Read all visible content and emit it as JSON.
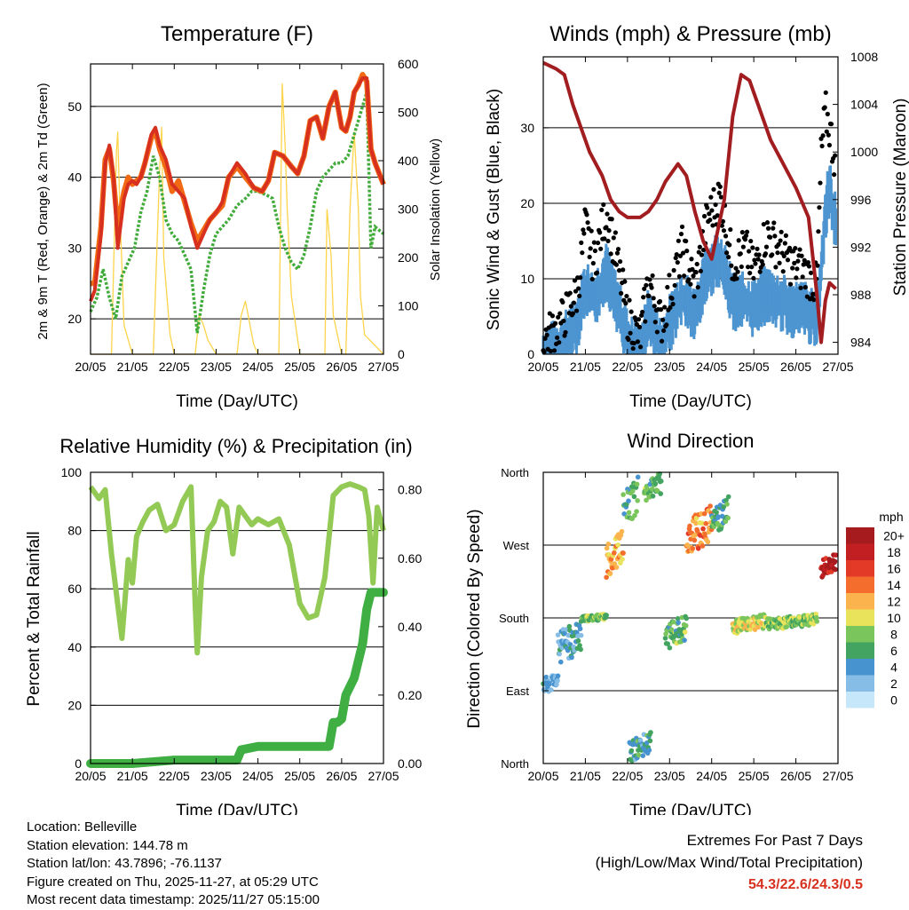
{
  "chart_data": [
    {
      "type": "line",
      "title": "Temperature (F)",
      "xlabel": "Time (Day/UTC)",
      "ylabel": "2m & 9m T (Red, Orange) & 2m Td (Green)",
      "ylabel_right": "Solar Insolation (Yellow)",
      "x_ticks": [
        "20/05",
        "21/05",
        "22/05",
        "23/05",
        "24/05",
        "25/05",
        "26/05",
        "27/05"
      ],
      "ylim": [
        15,
        56
      ],
      "y_ticks": [
        20,
        30,
        40,
        50
      ],
      "ylim_right": [
        0,
        600
      ],
      "y_ticks_right": [
        0,
        100,
        200,
        300,
        400,
        500,
        600
      ],
      "gridlines_y": [
        20,
        30,
        40,
        50
      ],
      "series": [
        {
          "name": "2m T",
          "color": "#d7301f",
          "x": [
            0,
            0.1,
            0.25,
            0.35,
            0.45,
            0.55,
            0.65,
            0.8,
            0.9,
            1.0,
            1.1,
            1.2,
            1.3,
            1.45,
            1.55,
            1.65,
            1.8,
            1.95,
            2.1,
            2.25,
            2.4,
            2.55,
            2.7,
            2.85,
            3.0,
            3.15,
            3.3,
            3.5,
            3.7,
            3.9,
            4.1,
            4.25,
            4.4,
            4.6,
            4.8,
            4.95,
            5.1,
            5.25,
            5.4,
            5.55,
            5.7,
            5.85,
            6.0,
            6.1,
            6.2,
            6.3,
            6.4,
            6.5,
            6.6,
            6.7,
            6.8,
            7.0
          ],
          "y": [
            22.5,
            24,
            32,
            42,
            44.5,
            40,
            30,
            37,
            39,
            39.5,
            39,
            40,
            42,
            46,
            47,
            44.5,
            42.5,
            39,
            38,
            37,
            33,
            30,
            32,
            34,
            35,
            36.5,
            40,
            42,
            40.5,
            38.5,
            38,
            39.5,
            43.5,
            43,
            41.5,
            40.5,
            43,
            48,
            48.5,
            45.5,
            50,
            52,
            47,
            46.5,
            48.5,
            52,
            53,
            54,
            54,
            44,
            42,
            39
          ]
        },
        {
          "name": "9m T",
          "color": "#f16913",
          "x": [
            0,
            0.1,
            0.25,
            0.35,
            0.45,
            0.55,
            0.65,
            0.8,
            0.9,
            1.0,
            1.1,
            1.2,
            1.3,
            1.45,
            1.55,
            1.65,
            1.8,
            1.95,
            2.1,
            2.25,
            2.4,
            2.55,
            2.7,
            2.85,
            3.0,
            3.15,
            3.3,
            3.5,
            3.7,
            3.9,
            4.1,
            4.25,
            4.4,
            4.6,
            4.8,
            4.95,
            5.1,
            5.25,
            5.4,
            5.55,
            5.7,
            5.85,
            6.0,
            6.1,
            6.2,
            6.3,
            6.4,
            6.5,
            6.6,
            6.7,
            6.8,
            7.0
          ],
          "y": [
            25,
            25,
            33,
            42.5,
            44,
            39.5,
            33,
            38,
            40,
            39,
            39.5,
            40,
            42,
            45.5,
            46.5,
            44,
            41.5,
            38,
            39.5,
            36.5,
            33.5,
            31,
            32.5,
            34,
            35,
            36,
            40,
            41.5,
            40,
            38.5,
            38,
            39.5,
            43.5,
            43,
            41.5,
            40.5,
            43,
            48,
            48.5,
            45.5,
            50,
            52,
            47,
            46.5,
            48.5,
            52,
            53,
            54.5,
            53.5,
            44,
            42,
            39
          ]
        },
        {
          "name": "2m Td",
          "color": "#41ab3b",
          "x": [
            0,
            0.15,
            0.3,
            0.45,
            0.6,
            0.75,
            0.9,
            1.05,
            1.2,
            1.35,
            1.5,
            1.65,
            1.8,
            1.95,
            2.1,
            2.25,
            2.4,
            2.55,
            2.7,
            2.85,
            3.0,
            3.15,
            3.3,
            3.5,
            3.7,
            3.85,
            4.0,
            4.2,
            4.35,
            4.5,
            4.65,
            4.8,
            4.95,
            5.1,
            5.25,
            5.4,
            5.55,
            5.7,
            5.85,
            6.0,
            6.15,
            6.3,
            6.45,
            6.6,
            6.7,
            6.8,
            7.0
          ],
          "y": [
            21,
            23,
            27,
            23,
            20,
            26,
            28,
            30,
            35,
            38,
            43,
            40,
            34,
            32,
            31,
            29,
            27,
            18,
            24,
            29,
            32,
            33,
            34,
            36,
            37,
            38,
            38,
            37.5,
            37,
            33,
            30,
            28,
            27,
            29,
            33,
            38,
            40,
            41,
            42,
            42,
            43,
            46,
            49,
            52,
            30,
            33,
            32
          ]
        },
        {
          "name": "Solar Insolation",
          "axis": "right",
          "color": "#fdd44a",
          "x": [
            0,
            0.5,
            0.62,
            0.65,
            0.7,
            0.8,
            1.0,
            1.5,
            1.65,
            1.7,
            1.75,
            1.9,
            2.0,
            2.5,
            2.6,
            2.7,
            2.8,
            3.0,
            3.5,
            3.6,
            3.7,
            3.9,
            4.0,
            4.5,
            4.58,
            4.65,
            4.7,
            4.8,
            5.0,
            5.6,
            5.65,
            5.75,
            5.8,
            6.0,
            6.1,
            6.2,
            6.3,
            6.4,
            6.45,
            6.55,
            7.0
          ],
          "y": [
            0,
            0,
            420,
            460,
            300,
            60,
            0,
            0,
            380,
            470,
            200,
            40,
            0,
            0,
            80,
            60,
            30,
            0,
            0,
            80,
            110,
            20,
            0,
            0,
            560,
            430,
            300,
            120,
            0,
            0,
            300,
            200,
            80,
            0,
            0,
            300,
            460,
            300,
            120,
            40,
            0
          ]
        }
      ]
    },
    {
      "type": "scatter",
      "title": "Winds (mph) & Pressure (mb)",
      "xlabel": "Time (Day/UTC)",
      "ylabel": "Sonic Wind & Gust (Blue, Black)",
      "ylabel_right": "Station Pressure (Maroon)",
      "x_ticks": [
        "20/05",
        "21/05",
        "22/05",
        "23/05",
        "24/05",
        "25/05",
        "26/05",
        "27/05"
      ],
      "ylim": [
        0,
        39.4
      ],
      "y_ticks": [
        0,
        10,
        20,
        30
      ],
      "ylim_right": [
        983,
        1008
      ],
      "y_ticks_right": [
        984,
        988,
        992,
        996,
        1000,
        1004,
        1008
      ],
      "gridlines_y": [
        10,
        20,
        30
      ],
      "series": [
        {
          "name": "Gust",
          "color": "#000000",
          "x": [
            0,
            0.4,
            0.8,
            1.0,
            1.2,
            1.5,
            1.8,
            2.0,
            2.3,
            2.5,
            2.8,
            3.0,
            3.3,
            3.6,
            3.9,
            4.2,
            4.5,
            4.8,
            5.0,
            5.3,
            5.6,
            5.9,
            6.2,
            6.5,
            6.6,
            6.7,
            6.8,
            6.95
          ],
          "y": [
            2,
            4,
            8,
            17,
            12,
            19,
            11,
            5,
            2,
            10,
            4,
            8,
            14,
            9,
            18,
            21,
            12,
            14,
            11,
            16,
            14,
            12,
            11,
            9,
            26,
            32,
            30,
            25
          ]
        },
        {
          "name": "Sonic Wind",
          "color": "#4d95d1",
          "x": [
            0,
            0.4,
            0.8,
            1.0,
            1.2,
            1.5,
            1.8,
            2.0,
            2.3,
            2.5,
            2.8,
            3.0,
            3.3,
            3.6,
            3.9,
            4.2,
            4.5,
            4.8,
            5.0,
            5.3,
            5.6,
            5.9,
            6.2,
            6.5,
            6.6,
            6.7,
            6.8,
            6.95
          ],
          "y": [
            1,
            2,
            5,
            10,
            8,
            12,
            7,
            3,
            1,
            6,
            2,
            5,
            9,
            6,
            12,
            14,
            8,
            8,
            7,
            9,
            8,
            7,
            7,
            5,
            12,
            20,
            23,
            18
          ]
        },
        {
          "name": "Station Pressure",
          "axis": "right",
          "color": "#a11d20",
          "x": [
            0,
            0.3,
            0.5,
            0.7,
            0.9,
            1.1,
            1.4,
            1.6,
            1.8,
            2.0,
            2.3,
            2.5,
            2.7,
            2.9,
            3.2,
            3.4,
            3.6,
            3.8,
            4.0,
            4.3,
            4.5,
            4.7,
            4.9,
            5.1,
            5.4,
            5.7,
            6.0,
            6.3,
            6.5,
            6.6,
            6.7,
            6.8,
            6.95
          ],
          "y": [
            1007.5,
            1007,
            1006.5,
            1004,
            1002,
            1000,
            998,
            996,
            995,
            994.5,
            994.5,
            995,
            996,
            997.5,
            999,
            998,
            995,
            992.5,
            991,
            996,
            1003,
            1006.5,
            1006,
            1004,
            1001,
            999,
            997,
            994.5,
            988,
            984,
            987.5,
            989,
            988.5
          ]
        }
      ]
    },
    {
      "type": "line",
      "title": "Relative Humidity (%) & Precipitation (in)",
      "xlabel": "Time (Day/UTC)",
      "ylabel": "Percent & Total Rainfall",
      "x_ticks": [
        "20/05",
        "21/05",
        "22/05",
        "23/05",
        "24/05",
        "25/05",
        "26/05",
        "27/05"
      ],
      "ylim": [
        0,
        100
      ],
      "y_ticks": [
        0,
        20,
        40,
        60,
        80,
        100
      ],
      "ylim_right": [
        0,
        0.8511
      ],
      "y_ticks_right": [
        "0.00",
        "0.20",
        "0.40",
        "0.60",
        "0.80"
      ],
      "gridlines_y": [
        20,
        40,
        60,
        80
      ],
      "series": [
        {
          "name": "Relative Humidity",
          "color": "#93c955",
          "x": [
            0,
            0.2,
            0.35,
            0.5,
            0.75,
            0.9,
            1.0,
            1.1,
            1.25,
            1.4,
            1.6,
            1.8,
            2.0,
            2.2,
            2.4,
            2.5,
            2.55,
            2.65,
            2.8,
            2.95,
            3.1,
            3.25,
            3.4,
            3.55,
            3.7,
            3.85,
            4.0,
            4.25,
            4.5,
            4.75,
            5.0,
            5.2,
            5.4,
            5.6,
            5.8,
            6.0,
            6.2,
            6.4,
            6.55,
            6.65,
            6.75,
            6.85,
            7.0
          ],
          "y": [
            95,
            91,
            94,
            72,
            43,
            70,
            62,
            78,
            83,
            87,
            89,
            80,
            82,
            90,
            95,
            55,
            38,
            64,
            80,
            83,
            90,
            88,
            72,
            88,
            85,
            82,
            84,
            82,
            84,
            75,
            55,
            50,
            51,
            64,
            92,
            95,
            96,
            95,
            94,
            85,
            62,
            88,
            80
          ]
        },
        {
          "name": "Total Rainfall",
          "axis": "right",
          "color": "#3fae43",
          "x": [
            0,
            1.0,
            2.0,
            3.0,
            3.5,
            3.6,
            4.0,
            4.5,
            5.0,
            5.5,
            5.7,
            5.8,
            5.9,
            6.0,
            6.1,
            6.3,
            6.4,
            6.5,
            6.6,
            6.7,
            6.8,
            7.0
          ],
          "y": [
            0.0,
            0.0,
            0.01,
            0.01,
            0.01,
            0.04,
            0.05,
            0.05,
            0.05,
            0.05,
            0.05,
            0.12,
            0.12,
            0.13,
            0.2,
            0.25,
            0.3,
            0.35,
            0.45,
            0.5,
            0.5,
            0.5
          ]
        }
      ]
    },
    {
      "type": "scatter",
      "title": "Wind Direction",
      "xlabel": "Time (Day/UTC)",
      "ylabel": "Direction (Colored By Speed)",
      "x_ticks": [
        "20/05",
        "21/05",
        "22/05",
        "23/05",
        "24/05",
        "25/05",
        "26/05",
        "27/05"
      ],
      "y_range_degrees": [
        0,
        360
      ],
      "y_ticks": [
        {
          "deg": 0,
          "label": "North"
        },
        {
          "deg": 90,
          "label": "East"
        },
        {
          "deg": 180,
          "label": "South"
        },
        {
          "deg": 270,
          "label": "West"
        },
        {
          "deg": 360,
          "label": "North"
        }
      ],
      "colorbar_title": "mph",
      "colorbar_labels": [
        "0",
        "2",
        "4",
        "6",
        "8",
        "10",
        "12",
        "14",
        "16",
        "18",
        "20+"
      ],
      "colorbar_colors": [
        "#c6e6f9",
        "#85bde6",
        "#4693cf",
        "#43a360",
        "#7ac65c",
        "#e8e35a",
        "#fbb44d",
        "#f46d2c",
        "#e23a27",
        "#c11f22",
        "#a51b1e"
      ],
      "segments": [
        {
          "x": [
            0.0,
            0.35
          ],
          "deg": [
            85,
            115
          ],
          "speed": 3
        },
        {
          "x": [
            0.35,
            0.9
          ],
          "deg": [
            120,
            180
          ],
          "speed": 4
        },
        {
          "x": [
            0.9,
            1.5
          ],
          "deg": [
            175,
            185
          ],
          "speed": 8
        },
        {
          "x": [
            1.5,
            1.9
          ],
          "deg": [
            230,
            290
          ],
          "speed": 12
        },
        {
          "x": [
            1.9,
            2.25
          ],
          "deg": [
            290,
            355
          ],
          "speed": 6
        },
        {
          "x": [
            2.05,
            2.55
          ],
          "deg": [
            0,
            40
          ],
          "speed": 5
        },
        {
          "x": [
            2.4,
            2.8
          ],
          "deg": [
            320,
            360
          ],
          "speed": 7
        },
        {
          "x": [
            2.9,
            3.4
          ],
          "deg": [
            140,
            185
          ],
          "speed": 7
        },
        {
          "x": [
            3.4,
            4.0
          ],
          "deg": [
            255,
            320
          ],
          "speed": 13
        },
        {
          "x": [
            4.0,
            4.4
          ],
          "deg": [
            280,
            330
          ],
          "speed": 6
        },
        {
          "x": [
            4.5,
            5.3
          ],
          "deg": [
            160,
            185
          ],
          "speed": 10
        },
        {
          "x": [
            5.3,
            6.5
          ],
          "deg": [
            165,
            185
          ],
          "speed": 8
        },
        {
          "x": [
            6.6,
            6.95
          ],
          "deg": [
            230,
            260
          ],
          "speed": 19
        }
      ]
    }
  ],
  "info": {
    "location": "Location: Belleville",
    "elevation": "Station elevation: 144.78 m",
    "latlon": "Station lat/lon: 43.7896; -76.1137",
    "created": "Figure created on Thu, 2025-11-27, at 05:29 UTC",
    "recent": "Most recent data timestamp: 2025/11/27 05:15:00"
  },
  "extremes": {
    "title": "Extremes For Past 7 Days",
    "subtitle": "(High/Low/Max Wind/Total Precipitation)",
    "values": "54.3/22.6/24.3/0.5"
  }
}
